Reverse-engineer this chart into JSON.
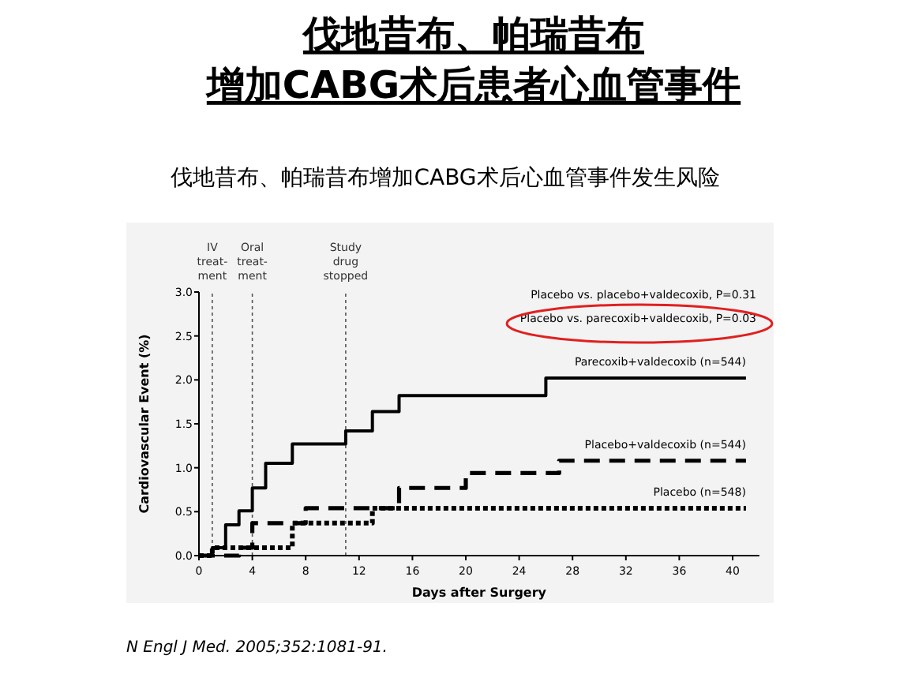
{
  "chart_data": {
    "type": "step",
    "title": "伐地昔布、帕瑞昔布增加CABG术后患者心血管事件",
    "subtitle": "伐地昔布、帕瑞昔布增加CABG术后心血管事件发生风险",
    "xlabel": "Days after Surgery",
    "ylabel": "Cardiovascular Event (%)",
    "xlim": [
      0,
      42
    ],
    "xticks": [
      0,
      4,
      8,
      12,
      16,
      20,
      24,
      28,
      32,
      36,
      40
    ],
    "ylim": [
      0,
      3
    ],
    "yticks": [
      {
        "value": 0,
        "label": "0.0"
      },
      {
        "value": 0.5,
        "label": "0.5"
      },
      {
        "value": 1,
        "label": "1.0"
      },
      {
        "value": 1.5,
        "label": "1.5"
      },
      {
        "value": 2,
        "label": "2.0"
      },
      {
        "value": 2.5,
        "label": "2.5"
      },
      {
        "value": 3,
        "label": "3.0"
      }
    ],
    "grid": false,
    "legend": false,
    "marker": "none",
    "series": [
      {
        "name": "Parecoxib+valdecoxib (n=544)",
        "color": "#000000",
        "line_style": "solid",
        "x": [
          0,
          1,
          2,
          3,
          4,
          5,
          7,
          11,
          13,
          15,
          26,
          41
        ],
        "values": [
          0,
          0.09,
          0.35,
          0.51,
          0.77,
          1.05,
          1.27,
          1.42,
          1.64,
          1.82,
          2.02,
          2.02
        ]
      },
      {
        "name": "Placebo+valdecoxib (n=544)",
        "color": "#000000",
        "line_style": "dashed",
        "x": [
          0,
          3,
          4,
          8,
          15,
          20,
          27,
          41
        ],
        "values": [
          0,
          0.09,
          0.37,
          0.54,
          0.77,
          0.94,
          1.08,
          1.08
        ]
      },
      {
        "name": "Placebo (n=548)",
        "color": "#000000",
        "line_style": "dotted",
        "x": [
          0,
          1,
          7,
          13,
          41
        ],
        "values": [
          0,
          0.09,
          0.37,
          0.54,
          0.54
        ]
      }
    ],
    "ref_lines": [
      {
        "axis": "x",
        "value": 1,
        "label": "IV\ntreat-\nment",
        "line_style": "dashed"
      },
      {
        "axis": "x",
        "value": 4,
        "label": "Oral\ntreat-\nment",
        "line_style": "dashed"
      },
      {
        "axis": "x",
        "value": 11,
        "label": "Study\ndrug\nstopped",
        "line_style": "dashed"
      }
    ],
    "annotations": [
      "Placebo vs. placebo+valdecoxib, P=0.31",
      "Placebo vs. parecoxib+valdecoxib, P=0.03",
      "N Engl J Med. 2005;352:1081-91."
    ]
  }
}
